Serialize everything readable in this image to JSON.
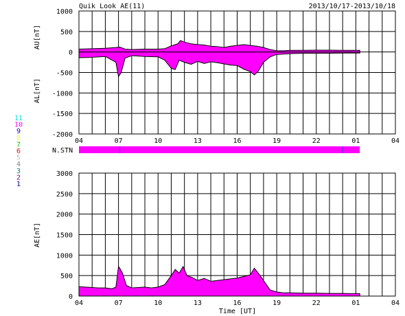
{
  "title_left": "Quik Look AE(11)",
  "title_right": "2013/10/17-2013/10/18",
  "colors": {
    "fill": "#ff00ff",
    "line": "#000000",
    "grid": "#000000",
    "marker": "#4040c0"
  },
  "chart_data": [
    {
      "type": "area",
      "panel": "AU/AL",
      "ylabel_top": "AU[nT]",
      "ylabel_bottom": "AL[nT]",
      "ylim": [
        -2000,
        1000
      ],
      "yticks": [
        "1000",
        "500",
        "0",
        "-500",
        "-1000",
        "-1500",
        "-2000"
      ],
      "xticks": [
        "04",
        "07",
        "10",
        "13",
        "16",
        "19",
        "22",
        "01",
        "04"
      ],
      "grid": true,
      "series": [
        {
          "name": "AU",
          "x": [
            4,
            5,
            6,
            6.8,
            7.1,
            7.5,
            8,
            9,
            10,
            10.5,
            11,
            11.5,
            11.7,
            12,
            12.5,
            13,
            13.5,
            14,
            14.5,
            15,
            15.5,
            16,
            16.5,
            17,
            17.5,
            18,
            18.5,
            19,
            19.5,
            20,
            21,
            22,
            23,
            24,
            24.5,
            25.3
          ],
          "values": [
            70,
            80,
            90,
            110,
            120,
            70,
            60,
            70,
            70,
            80,
            150,
            200,
            280,
            240,
            200,
            180,
            170,
            140,
            130,
            110,
            140,
            160,
            180,
            160,
            140,
            110,
            60,
            30,
            30,
            40,
            40,
            45,
            45,
            40,
            40,
            40
          ]
        },
        {
          "name": "AL",
          "x": [
            4,
            5,
            6,
            6.8,
            7.0,
            7.2,
            7.5,
            8,
            9,
            10,
            10.5,
            11,
            11.3,
            11.6,
            12,
            12.5,
            13,
            13.5,
            14,
            14.5,
            15,
            15.5,
            16,
            16.5,
            17,
            17.3,
            17.6,
            18,
            18.5,
            19,
            19.5,
            20,
            21,
            22,
            23,
            24,
            24.5,
            25.3
          ],
          "values": [
            -140,
            -130,
            -110,
            -250,
            -600,
            -500,
            -150,
            -90,
            -110,
            -120,
            -200,
            -400,
            -430,
            -200,
            -250,
            -300,
            -230,
            -280,
            -240,
            -260,
            -290,
            -320,
            -330,
            -420,
            -480,
            -560,
            -470,
            -250,
            -120,
            -60,
            -50,
            -40,
            -30,
            -30,
            -30,
            -25,
            -25,
            -25
          ]
        }
      ]
    },
    {
      "type": "bar",
      "panel": "N.STN",
      "label": "N.STN",
      "x_range": [
        4,
        25.3
      ],
      "markers_x": [
        7.1,
        24.0
      ]
    },
    {
      "type": "area",
      "panel": "AE",
      "ylabel": "AE[nT]",
      "xlabel": "Time [UT]",
      "ylim": [
        0,
        3000
      ],
      "yticks": [
        "3000",
        "2500",
        "2000",
        "1500",
        "1000",
        "500",
        "0"
      ],
      "xticks": [
        "04",
        "07",
        "10",
        "13",
        "16",
        "19",
        "22",
        "01",
        "04"
      ],
      "grid": true,
      "series": [
        {
          "name": "AE",
          "x": [
            4,
            4.5,
            5,
            5.5,
            6,
            6.5,
            6.8,
            7.0,
            7.1,
            7.3,
            7.6,
            8,
            8.5,
            9,
            9.5,
            10,
            10.5,
            11,
            11.3,
            11.6,
            11.9,
            12.2,
            12.6,
            13,
            13.5,
            14,
            14.5,
            15,
            15.5,
            16,
            16.5,
            17,
            17.3,
            17.6,
            18,
            18.5,
            19,
            19.5,
            20,
            21,
            22,
            23,
            24,
            24.5,
            25.3
          ],
          "values": [
            230,
            220,
            210,
            200,
            200,
            180,
            220,
            720,
            680,
            560,
            260,
            200,
            210,
            220,
            200,
            220,
            280,
            500,
            650,
            560,
            720,
            500,
            450,
            380,
            430,
            360,
            380,
            400,
            420,
            440,
            480,
            520,
            680,
            560,
            380,
            150,
            100,
            80,
            80,
            70,
            70,
            65,
            65,
            60,
            60
          ]
        }
      ]
    }
  ],
  "legend_numbers": [
    {
      "label": "11",
      "color": "#00e0e0"
    },
    {
      "label": "10",
      "color": "#ff00ff"
    },
    {
      "label": "9",
      "color": "#0000ff"
    },
    {
      "label": "8",
      "color": "#ffff00"
    },
    {
      "label": "7",
      "color": "#00c000"
    },
    {
      "label": "6",
      "color": "#ff0000"
    },
    {
      "label": "5",
      "color": "#c0c0c0"
    },
    {
      "label": "4",
      "color": "#808080"
    },
    {
      "label": "3",
      "color": "#008080"
    },
    {
      "label": "2",
      "color": "#800080"
    },
    {
      "label": "1",
      "color": "#000080"
    }
  ]
}
